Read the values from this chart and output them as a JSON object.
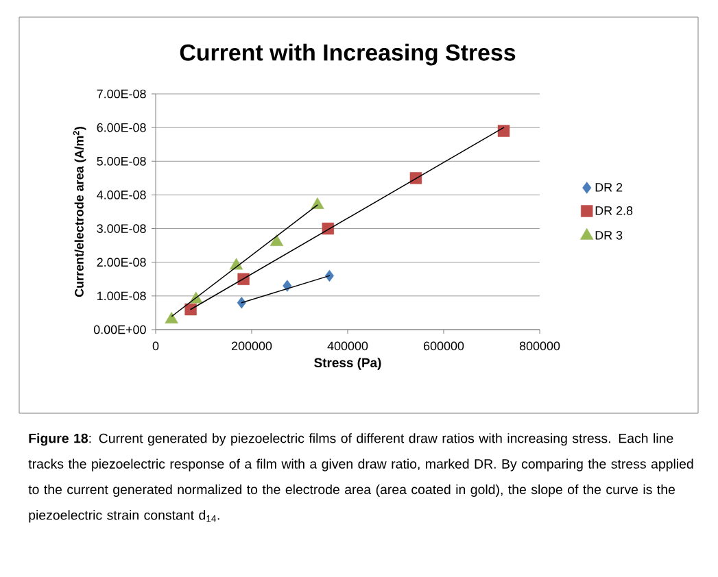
{
  "chart_data": {
    "type": "scatter",
    "title": "Current with Increasing Stress",
    "xlabel": "Stress (Pa)",
    "ylabel": "Current/electrode area (A/m$^{2}$)",
    "xlim": [
      0,
      800000
    ],
    "ylim": [
      0,
      7e-08
    ],
    "xticks": [
      0,
      200000,
      400000,
      600000,
      800000
    ],
    "yticks": [
      {
        "value": 0,
        "label": "0.00E+00"
      },
      {
        "value": 1e-08,
        "label": "1.00E-08"
      },
      {
        "value": 2e-08,
        "label": "2.00E-08"
      },
      {
        "value": 3e-08,
        "label": "3.00E-08"
      },
      {
        "value": 4e-08,
        "label": "4.00E-08"
      },
      {
        "value": 5e-08,
        "label": "5.00E-08"
      },
      {
        "value": 6e-08,
        "label": "6.00E-08"
      },
      {
        "value": 7e-08,
        "label": "7.00E-08"
      }
    ],
    "grid": "y",
    "legend": "right",
    "series": [
      {
        "name": "DR 2",
        "type": "scatter",
        "color": "#4a7ebb",
        "marker": "diamond",
        "x": [
          179000,
          274000,
          362000
        ],
        "values": [
          8e-09,
          1.3e-08,
          1.6e-08
        ]
      },
      {
        "name": "DR 2.8",
        "type": "scatter",
        "color": "#be4b48",
        "marker": "square",
        "x": [
          73000,
          183000,
          359000,
          542000,
          725000
        ],
        "values": [
          6e-09,
          1.5e-08,
          3e-08,
          4.5e-08,
          5.9e-08
        ]
      },
      {
        "name": "DR 3",
        "type": "scatter",
        "color": "#98b954",
        "marker": "triangle",
        "x": [
          33000,
          84000,
          168000,
          252000,
          337000
        ],
        "values": [
          3e-09,
          9e-09,
          1.9e-08,
          2.6e-08,
          3.7e-08
        ]
      },
      {
        "type": "line",
        "color": "#000000",
        "marker": "none",
        "x": [
          179000,
          362000
        ],
        "values": [
          8e-09,
          1.6e-08
        ]
      },
      {
        "type": "line",
        "color": "#000000",
        "marker": "none",
        "x": [
          73000,
          725000
        ],
        "values": [
          6e-09,
          6e-08
        ]
      },
      {
        "type": "line",
        "color": "#000000",
        "marker": "none",
        "x": [
          34000,
          337000
        ],
        "values": [
          4e-09,
          3.7e-08
        ]
      }
    ],
    "annotations": [
      "**Figure 18**: Current generated by piezoelectric films of different draw ratios with increasing stress.  Each line tracks the piezoelectric response of a film with a given draw ratio, marked DR.  By comparing the stress applied to the current generated normalized to the electrode area (area coated in gold), the slope of the curve is the piezoelectric strain constant d$_{14}$."
    ]
  }
}
